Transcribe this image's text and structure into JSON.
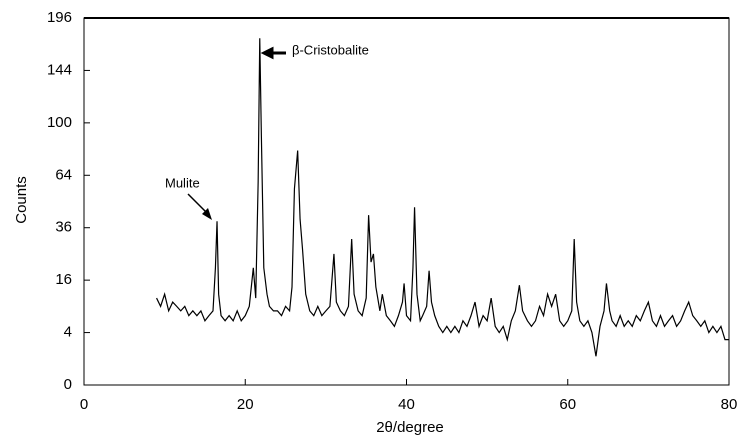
{
  "chart_data": {
    "type": "line",
    "ylabel": "Counts",
    "xlabel": "2θ/degree",
    "annotations": [
      "β-Cristobalite",
      "Mulite"
    ],
    "yscale": "sqrt",
    "color": "#000000",
    "xlim": [
      0,
      80
    ],
    "xticks": [
      0,
      20,
      40,
      60,
      80
    ],
    "ylim": [
      0,
      196
    ],
    "yticks": [
      0,
      4,
      16,
      36,
      64,
      100,
      144,
      196
    ],
    "x": [
      9,
      9.5,
      10,
      10.5,
      11,
      11.5,
      12,
      12.5,
      13,
      13.5,
      14,
      14.5,
      15,
      15.5,
      16,
      16.3,
      16.5,
      16.7,
      17,
      17.5,
      18,
      18.5,
      19,
      19.5,
      20,
      20.5,
      21,
      21.3,
      21.6,
      21.8,
      22.0,
      22.3,
      22.7,
      23,
      23.5,
      24,
      24.5,
      25,
      25.5,
      25.8,
      26.1,
      26.5,
      26.8,
      27.1,
      27.5,
      28,
      28.5,
      29,
      29.5,
      30,
      30.5,
      31,
      31.3,
      31.8,
      32.3,
      32.8,
      33.2,
      33.5,
      34,
      34.5,
      35,
      35.3,
      35.6,
      35.9,
      36.2,
      36.7,
      37,
      37.5,
      38,
      38.5,
      39,
      39.5,
      39.7,
      40,
      40.5,
      40.8,
      41.0,
      41.3,
      41.7,
      42,
      42.5,
      42.8,
      43.1,
      43.5,
      44,
      44.5,
      45,
      45.5,
      46,
      46.5,
      47,
      47.5,
      48,
      48.5,
      49,
      49.5,
      50,
      50.5,
      51,
      51.5,
      52,
      52.5,
      53,
      53.5,
      54,
      54.4,
      55,
      55.5,
      56,
      56.5,
      57,
      57.5,
      58,
      58.5,
      59,
      59.5,
      60,
      60.5,
      60.8,
      61.1,
      61.5,
      62,
      62.5,
      63,
      63.5,
      64,
      64.5,
      64.8,
      65.2,
      65.5,
      66,
      66.5,
      67,
      67.5,
      68,
      68.5,
      69,
      69.5,
      70,
      70.5,
      71,
      71.5,
      72,
      72.5,
      73,
      73.5,
      74,
      74.5,
      75,
      75.5,
      76,
      76.5,
      77,
      77.5,
      78,
      78.5,
      79,
      79.5,
      80
    ],
    "values": [
      11,
      9,
      12,
      8,
      10,
      9,
      8,
      9,
      7,
      8,
      7,
      8,
      6,
      7,
      8,
      20,
      39,
      12,
      7,
      6,
      7,
      6,
      8,
      6,
      7,
      9,
      20,
      11,
      60,
      175,
      90,
      20,
      12,
      9,
      8,
      8,
      7,
      9,
      8,
      14,
      56,
      80,
      40,
      27,
      12,
      8,
      7,
      9,
      7,
      8,
      9,
      25,
      10,
      8,
      7,
      9,
      31,
      12,
      8,
      7,
      11,
      42,
      22,
      25,
      14,
      8,
      12,
      7,
      6,
      5,
      7,
      10,
      15,
      7,
      6,
      20,
      46,
      12,
      6,
      7,
      9,
      19,
      10,
      7,
      5,
      4,
      5,
      4,
      5,
      4,
      6,
      5,
      7,
      10,
      5,
      7,
      6,
      11,
      5,
      4,
      5,
      3,
      6,
      8,
      14.5,
      8,
      6,
      5,
      6,
      9,
      7,
      12,
      9,
      12,
      6,
      5,
      6,
      8,
      31,
      10,
      6,
      5,
      6,
      4,
      1.2,
      5,
      8,
      15,
      8,
      6,
      5,
      7,
      5,
      6,
      5,
      7,
      6,
      8,
      10,
      6,
      5,
      7,
      5,
      6,
      7,
      5,
      6,
      8,
      10,
      7,
      6,
      5,
      6,
      4,
      5,
      4,
      5,
      3,
      3
    ]
  }
}
